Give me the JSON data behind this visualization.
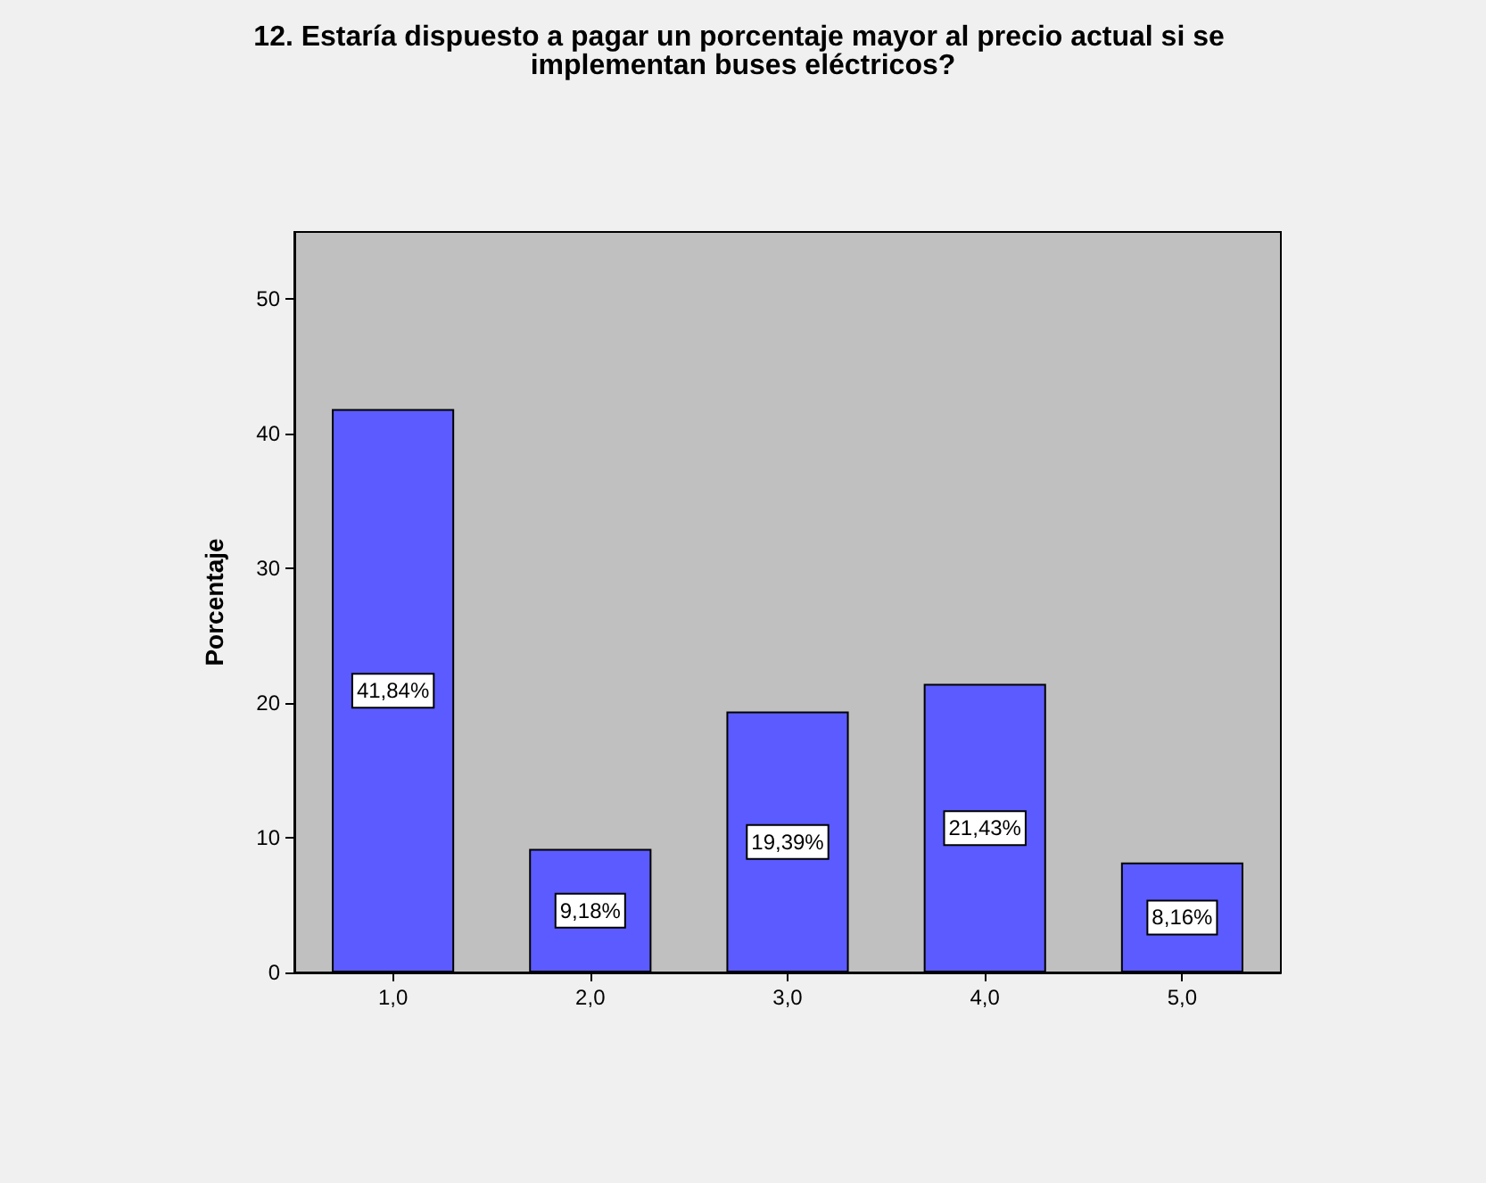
{
  "chart_data": {
    "type": "bar",
    "title": "12. Estaría dispuesto a pagar un porcentaje mayor al precio actual si se implementan buses eléctricos?",
    "ylabel": "Porcentaje",
    "categories": [
      "1,0",
      "2,0",
      "3,0",
      "4,0",
      "5,0"
    ],
    "values": [
      41.84,
      9.18,
      19.39,
      21.43,
      8.16
    ],
    "value_labels": [
      "41,84%",
      "9,18%",
      "19,39%",
      "21,43%",
      "8,16%"
    ],
    "color": "#5b5bff",
    "ylim": [
      0,
      55
    ],
    "yticks": [
      0,
      10,
      20,
      30,
      40,
      50
    ],
    "grid": false
  }
}
